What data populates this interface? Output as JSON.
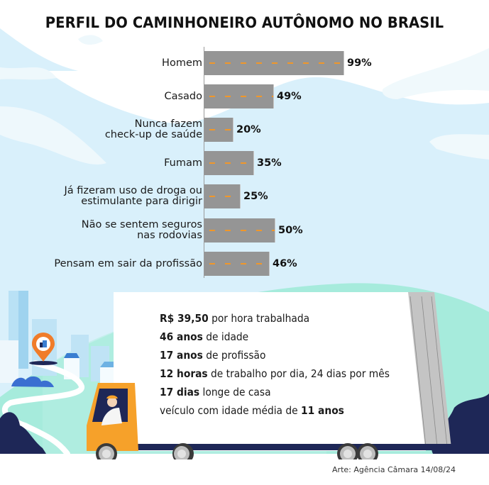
{
  "title": "PERFIL DO CAMINHONEIRO AUTÔNOMO NO BRASIL",
  "colors": {
    "bar": "#959595",
    "dash": "#f0972a",
    "sky": "#d8f0fa",
    "mint": "#a6ebdc",
    "navy": "#1e2757",
    "truck_cab": "#f6a12a",
    "pin": "#f07c2a"
  },
  "chart_data": {
    "type": "bar",
    "orientation": "horizontal",
    "title": "PERFIL DO CAMINHONEIRO AUTÔNOMO NO BRASIL",
    "xlabel": "",
    "ylabel": "",
    "xlim": [
      0,
      100
    ],
    "grid": false,
    "legend": null,
    "categories": [
      "Homem",
      "Casado",
      "Nunca fazem check-up de saúde",
      "Fumam",
      "Já fizeram uso de droga ou estimulante para dirigir",
      "Não se sentem seguros nas rodovias",
      "Pensam em sair da profissão"
    ],
    "values": [
      99,
      49,
      20,
      35,
      25,
      50,
      46
    ],
    "value_labels": [
      "99%",
      "49%",
      "20%",
      "35%",
      "25%",
      "50%",
      "46%"
    ],
    "unit": "%"
  },
  "bars": [
    {
      "line1": "Homem",
      "line2": "",
      "value": 99,
      "label": "99%"
    },
    {
      "line1": "Casado",
      "line2": "",
      "value": 49,
      "label": "49%"
    },
    {
      "line1": "Nunca fazem",
      "line2": "check-up de saúde",
      "value": 20,
      "label": "20%"
    },
    {
      "line1": "Fumam",
      "line2": "",
      "value": 35,
      "label": "35%"
    },
    {
      "line1": "Já fizeram uso de droga ou",
      "line2": "estimulante para dirigir",
      "value": 25,
      "label": "25%"
    },
    {
      "line1": "Não se sentem seguros",
      "line2": "nas rodovias",
      "value": 50,
      "label": "50%"
    },
    {
      "line1": "Pensam em sair da profissão",
      "line2": "",
      "value": 46,
      "label": "46%"
    }
  ],
  "stats": [
    {
      "bold": "R$ 39,50",
      "text": " por hora trabalhada"
    },
    {
      "bold": "46 anos",
      "text": " de idade"
    },
    {
      "bold": "17 anos",
      "text": " de profissão"
    },
    {
      "bold": "12 horas",
      "text": " de trabalho por dia, 24 dias por mês"
    },
    {
      "bold": "17 dias",
      "text": " longe de casa"
    },
    {
      "pre": "veículo com idade média de ",
      "bold": "11 anos"
    }
  ],
  "credit": "Arte: Agência Câmara 14/08/24"
}
